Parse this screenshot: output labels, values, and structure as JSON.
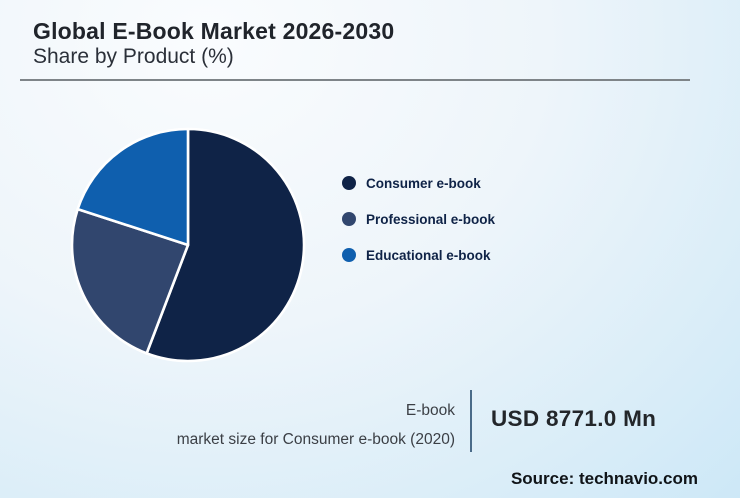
{
  "header": {
    "title": "Global E-Book Market 2026-2030",
    "subtitle": "Share by Product (%)"
  },
  "chart_data": {
    "type": "pie",
    "title": "Global E-Book Market 2026-2030",
    "subtitle": "Share by Product (%)",
    "start_angle_deg": 0,
    "direction": "clockwise",
    "legend_position": "right",
    "separator_color": "#ffffff",
    "slices": [
      {
        "label": "Consumer e-book",
        "value_pct": 55.8,
        "color": "#0f2347"
      },
      {
        "label": "Professional e-book",
        "value_pct": 24.2,
        "color": "#31466e"
      },
      {
        "label": "Educational e-book",
        "value_pct": 20.0,
        "color": "#0f5fae"
      }
    ]
  },
  "callout": {
    "lines": [
      "E-book",
      "market size for Consumer e-book (2020)"
    ],
    "value": "USD 8771.0 Mn"
  },
  "source": {
    "text": "Source: technavio.com"
  },
  "colors": {
    "background_start": "#fafcfe",
    "background_end": "#cde8f7",
    "title_rule": "#7e8488",
    "callout_divider": "#4a6b89",
    "legend_text": "#0f2347"
  }
}
